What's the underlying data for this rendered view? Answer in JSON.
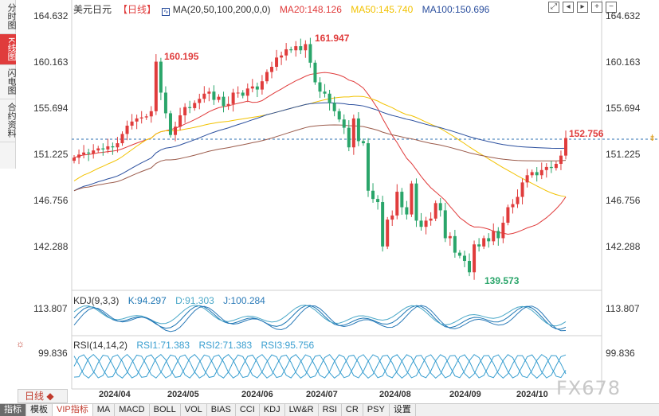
{
  "left_tabs": [
    {
      "label": "分时图",
      "active": false
    },
    {
      "label": "K线图",
      "active": true
    },
    {
      "label": "闪电图",
      "active": false
    },
    {
      "label": "合约资料",
      "active": false
    }
  ],
  "legend": {
    "symbol": "美元日元",
    "period": "【日线】",
    "ma_title": "MA(20,50,100,200,0,0)",
    "ma20": "MA20:148.126",
    "ma50": "MA50:145.740",
    "ma100": "MA100:150.696",
    "kdj_title": "KDJ(9,3,3)",
    "kdj_k": "K:94.297",
    "kdj_d": "D:91.303",
    "kdj_j": "J:100.284",
    "rsi_title": "RSI(14,14,2)",
    "rsi1": "RSI1:71.383",
    "rsi2": "RSI2:71.383",
    "rsi3": "RSI3:95.756"
  },
  "colors": {
    "up": "#e03c3c",
    "down": "#2aa56a",
    "ma20": "#e03c3c",
    "ma50": "#f2c200",
    "ma100": "#2b4f9e",
    "ma200": "#9b5b4b",
    "kdj_k": "#1f77b4",
    "kdj_d": "#4aa8c8",
    "kdj_j": "#2a7ab8",
    "rsi": "#3a9fd0"
  },
  "y_axis": {
    "left": [
      "164.632",
      "160.163",
      "155.694",
      "151.225",
      "146.756",
      "142.288"
    ],
    "right": [
      "164.632",
      "160.163",
      "155.694",
      "151.225",
      "146.756",
      "142.288"
    ],
    "kdj_left": "113.807",
    "kdj_right": "113.807",
    "rsi_left": "99.836",
    "rsi_right": "99.836"
  },
  "annotations": {
    "high1": "160.195",
    "high2": "161.947",
    "low": "139.573",
    "last": "152.756"
  },
  "x_axis": [
    "2024/04",
    "2024/05",
    "2024/06",
    "2024/07",
    "2024/08",
    "2024/09",
    "2024/10"
  ],
  "period_button": "日线",
  "bottom_tabs": [
    {
      "label": "指标",
      "style": "dark"
    },
    {
      "label": "模板",
      "style": "normal"
    },
    {
      "label": "VIP指标",
      "style": "active"
    },
    {
      "label": "MA",
      "style": "normal"
    },
    {
      "label": "MACD",
      "style": "normal"
    },
    {
      "label": "BOLL",
      "style": "normal"
    },
    {
      "label": "VOL",
      "style": "normal"
    },
    {
      "label": "BIAS",
      "style": "normal"
    },
    {
      "label": "CCI",
      "style": "normal"
    },
    {
      "label": "KDJ",
      "style": "normal"
    },
    {
      "label": "LW&R",
      "style": "normal"
    },
    {
      "label": "RSI",
      "style": "normal"
    },
    {
      "label": "CR",
      "style": "normal"
    },
    {
      "label": "PSY",
      "style": "normal"
    },
    {
      "label": "设置",
      "style": "normal"
    }
  ],
  "watermark": "FX678",
  "chart_data": {
    "type": "candlestick",
    "x_range": [
      "2024/03",
      "2024/10"
    ],
    "ylim": [
      139.573,
      164.632
    ],
    "close_series": [
      150.9,
      151.2,
      151.4,
      151.3,
      151.6,
      151.8,
      151.7,
      152.0,
      151.9,
      152.3,
      153.2,
      154.0,
      154.4,
      154.7,
      154.8,
      154.9,
      155.4,
      160.2,
      157.2,
      155.2,
      153.1,
      153.9,
      155.0,
      155.8,
      155.7,
      156.2,
      156.6,
      157.1,
      157.3,
      156.5,
      156.8,
      155.9,
      156.1,
      157.2,
      157.2,
      156.9,
      157.6,
      157.8,
      157.5,
      158.3,
      159.2,
      159.7,
      160.6,
      160.8,
      161.4,
      161.3,
      161.7,
      161.3,
      161.9,
      160.1,
      158.2,
      157.3,
      157.1,
      156.2,
      155.4,
      154.6,
      153.8,
      151.9,
      154.7,
      152.5,
      152.3,
      147.7,
      146.9,
      146.6,
      142.3,
      144.9,
      145.3,
      147.6,
      146.1,
      145.4,
      148.4,
      144.8,
      144.2,
      144.8,
      145.0,
      146.5,
      145.8,
      143.1,
      143.3,
      141.7,
      141.4,
      140.9,
      139.8,
      142.5,
      142.3,
      143.1,
      142.8,
      143.8,
      143.1,
      144.6,
      146.1,
      146.4,
      147.1,
      148.5,
      149.2,
      149.5,
      149.2,
      149.7,
      150.0,
      149.9,
      150.3,
      151.1,
      152.8
    ],
    "series": [
      {
        "name": "MA20",
        "last": 148.126
      },
      {
        "name": "MA50",
        "last": 145.74
      },
      {
        "name": "MA100",
        "last": 150.696
      }
    ],
    "annotations": [
      {
        "label": "160.195",
        "value": 160.195
      },
      {
        "label": "161.947",
        "value": 161.947
      },
      {
        "label": "139.573",
        "value": 139.573
      },
      {
        "label": "152.756",
        "value": 152.756
      }
    ]
  }
}
